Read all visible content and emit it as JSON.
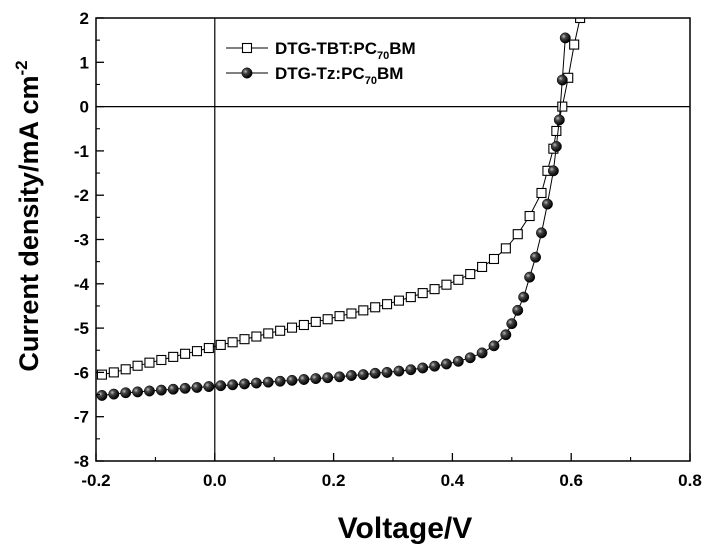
{
  "chart_data": {
    "type": "line",
    "title": "",
    "xlabel": "Voltage/V",
    "ylabel": {
      "main": "Current density/mA cm",
      "superscript": "-2"
    },
    "xlim": [
      -0.2,
      0.8
    ],
    "ylim": [
      -8,
      2
    ],
    "x_ticks": [
      "-0.2",
      "0.0",
      "0.2",
      "0.4",
      "0.6",
      "0.8"
    ],
    "y_ticks": [
      "2",
      "1",
      "0",
      "-1",
      "-2",
      "-3",
      "-4",
      "-5",
      "-6",
      "-7",
      "-8"
    ],
    "grid": false,
    "reference_lines": {
      "x": 0,
      "y": 0
    },
    "legend_position": "top-left",
    "series": [
      {
        "name": {
          "pre": "DTG-TBT:PC",
          "sub": "70",
          "post": "BM"
        },
        "marker": "open-square",
        "color": "#000000",
        "x": [
          -0.19,
          -0.17,
          -0.15,
          -0.13,
          -0.11,
          -0.09,
          -0.07,
          -0.05,
          -0.03,
          -0.01,
          0.01,
          0.03,
          0.05,
          0.07,
          0.09,
          0.11,
          0.13,
          0.15,
          0.17,
          0.19,
          0.21,
          0.23,
          0.25,
          0.27,
          0.29,
          0.31,
          0.33,
          0.35,
          0.37,
          0.39,
          0.41,
          0.43,
          0.45,
          0.47,
          0.49,
          0.51,
          0.53,
          0.55,
          0.56,
          0.57,
          0.575,
          0.585,
          0.595,
          0.605,
          0.615
        ],
        "y": [
          -6.05,
          -6.0,
          -5.93,
          -5.85,
          -5.78,
          -5.72,
          -5.65,
          -5.58,
          -5.52,
          -5.45,
          -5.38,
          -5.32,
          -5.25,
          -5.19,
          -5.12,
          -5.06,
          -4.99,
          -4.93,
          -4.86,
          -4.8,
          -4.73,
          -4.67,
          -4.6,
          -4.53,
          -4.46,
          -4.38,
          -4.3,
          -4.21,
          -4.12,
          -4.02,
          -3.91,
          -3.78,
          -3.62,
          -3.44,
          -3.2,
          -2.88,
          -2.47,
          -1.95,
          -1.45,
          -0.95,
          -0.55,
          0.0,
          0.65,
          1.4,
          2.0
        ]
      },
      {
        "name": {
          "pre": "DTG-Tz:PC",
          "sub": "70",
          "post": "BM"
        },
        "marker": "filled-sphere",
        "color": "#000000",
        "x": [
          -0.19,
          -0.17,
          -0.15,
          -0.13,
          -0.11,
          -0.09,
          -0.07,
          -0.05,
          -0.03,
          -0.01,
          0.01,
          0.03,
          0.05,
          0.07,
          0.09,
          0.11,
          0.13,
          0.15,
          0.17,
          0.19,
          0.21,
          0.23,
          0.25,
          0.27,
          0.29,
          0.31,
          0.33,
          0.35,
          0.37,
          0.39,
          0.41,
          0.43,
          0.45,
          0.47,
          0.49,
          0.5,
          0.51,
          0.52,
          0.53,
          0.54,
          0.55,
          0.56,
          0.57,
          0.575,
          0.58,
          0.585,
          0.59
        ],
        "y": [
          -6.52,
          -6.49,
          -6.46,
          -6.44,
          -6.42,
          -6.4,
          -6.38,
          -6.36,
          -6.34,
          -6.32,
          -6.3,
          -6.28,
          -6.26,
          -6.24,
          -6.22,
          -6.2,
          -6.18,
          -6.16,
          -6.14,
          -6.12,
          -6.1,
          -6.07,
          -6.05,
          -6.02,
          -6.0,
          -5.97,
          -5.94,
          -5.9,
          -5.86,
          -5.81,
          -5.75,
          -5.67,
          -5.56,
          -5.4,
          -5.15,
          -4.9,
          -4.6,
          -4.3,
          -3.85,
          -3.4,
          -2.85,
          -2.2,
          -1.45,
          -0.9,
          -0.3,
          0.6,
          1.55
        ]
      }
    ]
  }
}
